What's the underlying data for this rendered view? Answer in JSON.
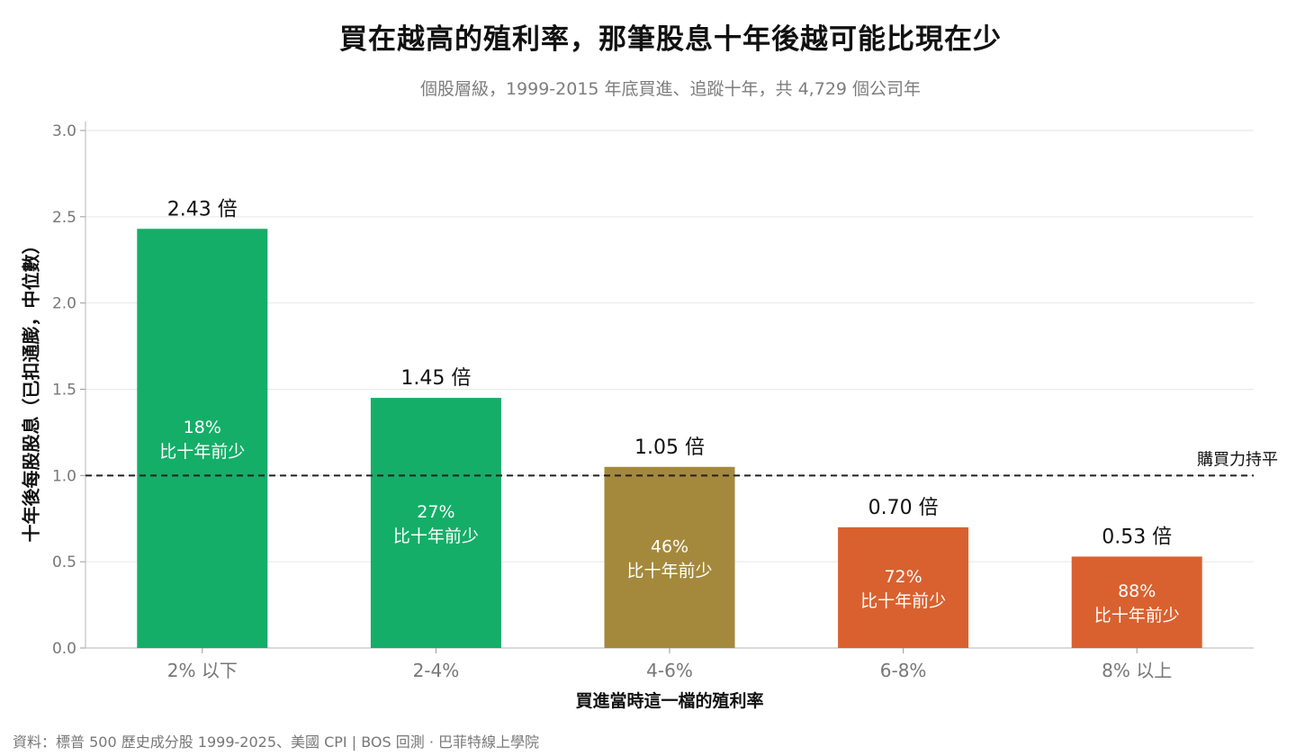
{
  "title": "買在越高的殖利率，那筆股息十年後越可能比現在少",
  "subtitle": "個股層級，1999-2015 年底買進、追蹤十年，共 4,729 個公司年",
  "source": "資料：標普 500 歷史成分股 1999-2025、美國 CPI | BOS 回測 ·  巴菲特線上學院",
  "chart_data": {
    "type": "bar",
    "categories": [
      "2% 以下",
      "2-4%",
      "4-6%",
      "6-8%",
      "8% 以上"
    ],
    "values": [
      2.43,
      1.45,
      1.05,
      0.7,
      0.53
    ],
    "value_labels": [
      "2.43 倍",
      "1.45 倍",
      "1.05 倍",
      "0.70 倍",
      "0.53 倍"
    ],
    "inner_labels": [
      {
        "pct": "18%",
        "text": "比十年前少"
      },
      {
        "pct": "27%",
        "text": "比十年前少"
      },
      {
        "pct": "46%",
        "text": "比十年前少"
      },
      {
        "pct": "72%",
        "text": "比十年前少"
      },
      {
        "pct": "88%",
        "text": "比十年前少"
      }
    ],
    "colors": [
      "#14ae68",
      "#14ae68",
      "#a4893c",
      "#d9612f",
      "#d9612f"
    ],
    "xlabel": "買進當時這一檔的殖利率",
    "ylabel": "十年後每股股息（已扣通膨，中位數）",
    "ylim": [
      0,
      3.0
    ],
    "yticks": [
      "0.0",
      "0.5",
      "1.0",
      "1.5",
      "2.0",
      "2.5",
      "3.0"
    ],
    "grid": true,
    "reference_line": {
      "value": 1.0,
      "label": "購買力持平",
      "style": "dashed"
    }
  }
}
